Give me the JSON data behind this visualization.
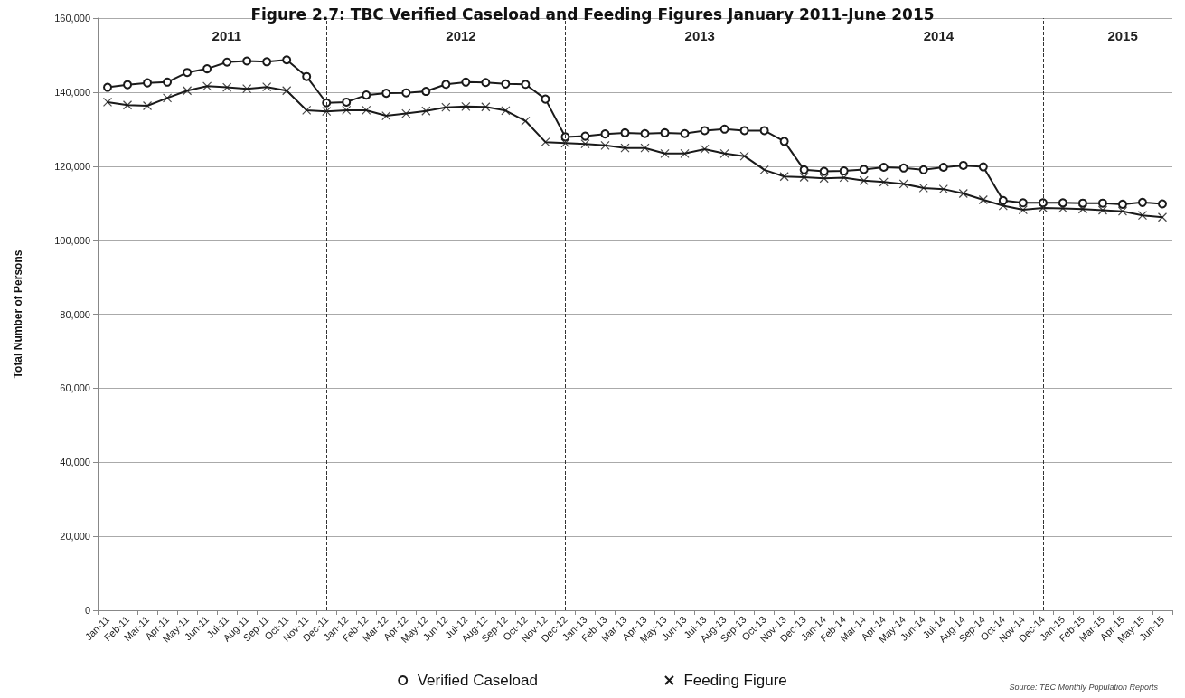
{
  "chart_data": {
    "type": "line",
    "title": "Figure 2.7: TBC Verified Caseload and Feeding Figures January 2011-June 2015",
    "ylabel": "Total Number of Persons",
    "categories": [
      "Jan-11",
      "Feb-11",
      "Mar-11",
      "Apr-11",
      "May-11",
      "Jun-11",
      "Jul-11",
      "Aug-11",
      "Sep-11",
      "Oct-11",
      "Nov-11",
      "Dec-11",
      "Jan-12",
      "Feb-12",
      "Mar-12",
      "Apr-12",
      "May-12",
      "Jun-12",
      "Jul-12",
      "Aug-12",
      "Sep-12",
      "Oct-12",
      "Nov-12",
      "Dec-12",
      "Jan-13",
      "Feb-13",
      "Mar-13",
      "Apr-13",
      "May-13",
      "Jun-13",
      "Jul-13",
      "Aug-13",
      "Sep-13",
      "Oct-13",
      "Nov-13",
      "Dec-13",
      "Jan-14",
      "Feb-14",
      "Mar-14",
      "Apr-14",
      "May-14",
      "Jun-14",
      "Jul-14",
      "Aug-14",
      "Sep-14",
      "Oct-14",
      "Nov-14",
      "Dec-14",
      "Jan-15",
      "Feb-15",
      "Mar-15",
      "Apr-15",
      "May-15",
      "Jun-15"
    ],
    "series": [
      {
        "name": "Verified Caseload",
        "color": "#1a1a1a",
        "marker": "circle",
        "values": [
          141300,
          142000,
          142500,
          142700,
          145300,
          146300,
          148100,
          148400,
          148200,
          148700,
          144200,
          137100,
          137300,
          139200,
          139700,
          139800,
          140200,
          142100,
          142700,
          142600,
          142200,
          142100,
          138100,
          127900,
          128100,
          128700,
          129000,
          128800,
          129000,
          128800,
          129600,
          130000,
          129600,
          129600,
          126700,
          119000,
          118600,
          118700,
          119100,
          119700,
          119500,
          119000,
          119700,
          120200,
          119800,
          110700,
          110100,
          110100,
          110100,
          110000,
          110000,
          109700,
          110200,
          109800
        ]
      },
      {
        "name": "Feeding Figure",
        "color": "#1a1a1a",
        "marker": "cross",
        "values": [
          137300,
          136500,
          136300,
          138400,
          140400,
          141600,
          141300,
          140900,
          141400,
          140400,
          135100,
          134800,
          135100,
          135100,
          133600,
          134200,
          134900,
          135900,
          136100,
          136000,
          135000,
          132200,
          126500,
          126200,
          126000,
          125600,
          124900,
          124900,
          123400,
          123400,
          124600,
          123400,
          122700,
          119000,
          117200,
          117000,
          116700,
          116900,
          116100,
          115700,
          115200,
          114100,
          113800,
          112600,
          110900,
          109300,
          108200,
          108700,
          108600,
          108400,
          108100,
          107800,
          106700,
          106200
        ]
      }
    ],
    "ylim": [
      0,
      160000
    ],
    "yticks": [
      0,
      {
        "value": 20000,
        "label": "20,000"
      },
      {
        "value": 40000,
        "label": "40,000"
      },
      {
        "value": 60000,
        "label": "60,000"
      },
      {
        "value": 80000,
        "label": "80,000"
      },
      {
        "value": 100000,
        "label": "100,000"
      },
      {
        "value": 120000,
        "label": "120,000"
      },
      {
        "value": 140000,
        "label": "140,000"
      },
      {
        "value": 160000,
        "label": "160,000"
      }
    ],
    "grid": "y",
    "legend": "bottom",
    "line_style": "solid",
    "ref_lines": [
      {
        "axis": "x",
        "value": "Dec-11",
        "line_style": "dashed",
        "color": "#333333"
      },
      {
        "axis": "x",
        "value": "Dec-12",
        "line_style": "dashed",
        "color": "#333333"
      },
      {
        "axis": "x",
        "value": "Dec-13",
        "line_style": "dashed",
        "color": "#333333"
      },
      {
        "axis": "x",
        "value": "Dec-14",
        "line_style": "dashed",
        "color": "#333333"
      }
    ],
    "annotations": [
      "2011",
      "2012",
      "2013",
      "2014",
      "2015",
      "Source: TBC Monthly Population Reports"
    ]
  }
}
